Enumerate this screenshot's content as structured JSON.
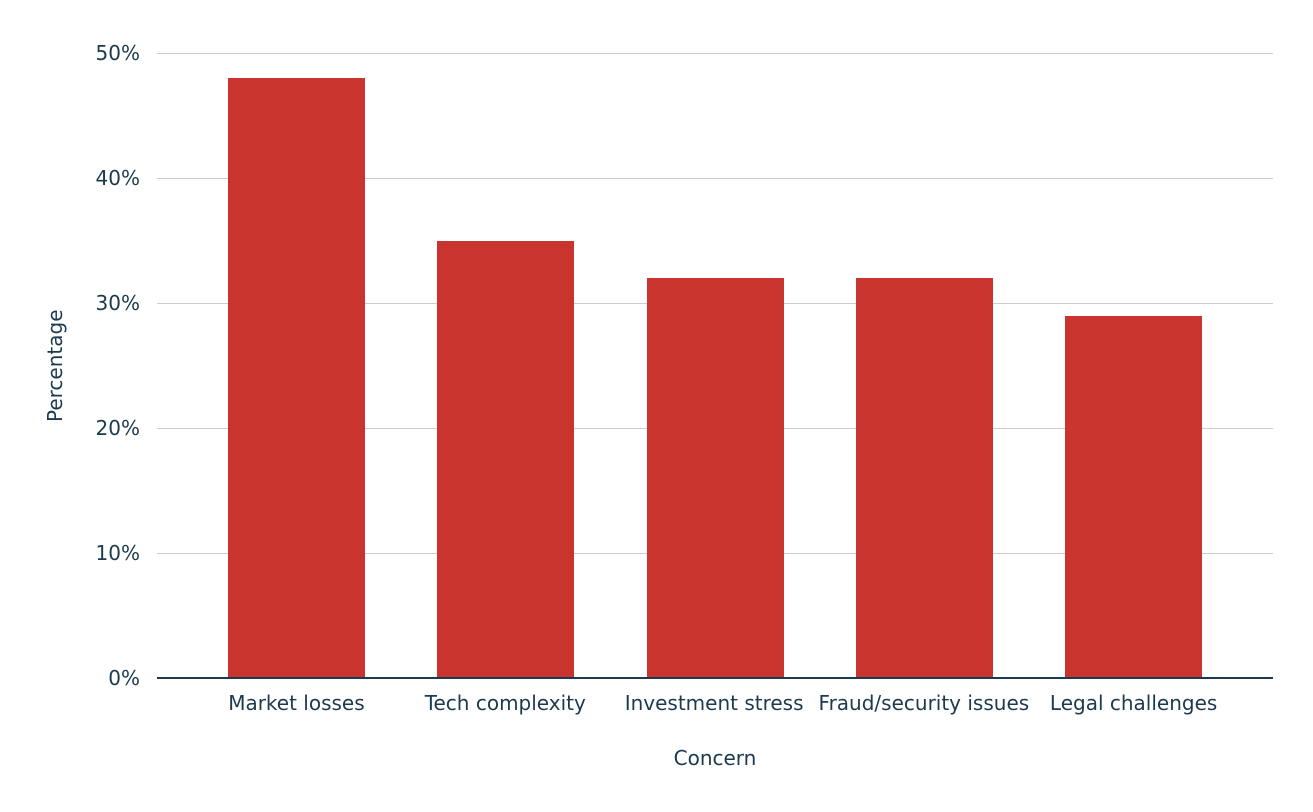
{
  "chart_data": {
    "type": "bar",
    "categories": [
      "Market losses",
      "Tech complexity",
      "Investment stress",
      "Fraud/security issues",
      "Legal challenges"
    ],
    "values": [
      48,
      35,
      32,
      32,
      29
    ],
    "title": "",
    "xlabel": "Concern",
    "ylabel": "Percentage",
    "ylim": [
      0,
      50
    ],
    "yticks": [
      0,
      10,
      20,
      30,
      40,
      50
    ],
    "ytick_labels": [
      "0%",
      "10%",
      "20%",
      "30%",
      "40%",
      "50%"
    ],
    "grid": true,
    "legend": "none"
  },
  "colors": {
    "bar": "#c9342f",
    "text": "#1c3a4e",
    "gridline": "#cccccc",
    "baseline": "#1c3a4e",
    "background": "#ffffff"
  }
}
